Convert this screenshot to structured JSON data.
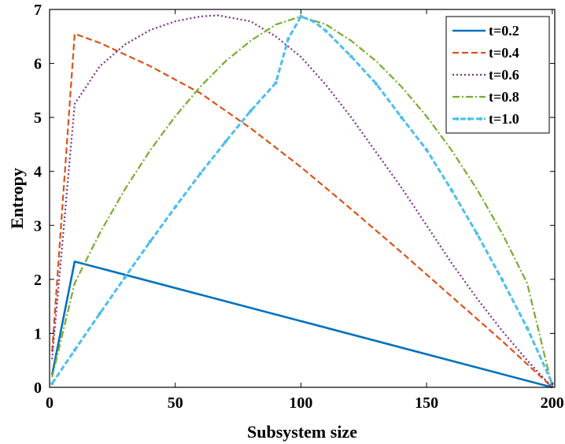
{
  "chart_data": {
    "type": "line",
    "xlabel": "Subsystem size",
    "ylabel": "Entropy",
    "xlim": [
      0,
      201
    ],
    "ylim": [
      0,
      7
    ],
    "xticks": [
      0,
      50,
      100,
      150,
      200
    ],
    "yticks": [
      0,
      1,
      2,
      3,
      4,
      5,
      6,
      7
    ],
    "grid": false,
    "legend_position": "top-right",
    "series": [
      {
        "name": "t=0.2",
        "color": "#0072BD",
        "style": "solid",
        "points": [
          [
            1,
            0.23
          ],
          [
            10,
            2.33
          ],
          [
            200,
            0
          ]
        ]
      },
      {
        "name": "t=0.4",
        "color": "#D95319",
        "style": "dashed",
        "points": [
          [
            1,
            0.66
          ],
          [
            10,
            6.55
          ],
          [
            20,
            6.38
          ],
          [
            40,
            5.95
          ],
          [
            60,
            5.45
          ],
          [
            80,
            4.8
          ],
          [
            100,
            4.08
          ],
          [
            120,
            3.3
          ],
          [
            140,
            2.5
          ],
          [
            160,
            1.68
          ],
          [
            180,
            0.86
          ],
          [
            200,
            0
          ]
        ]
      },
      {
        "name": "t=0.6",
        "color": "#7E2F8E",
        "style": "dotted",
        "points": [
          [
            1,
            0.52
          ],
          [
            10,
            5.25
          ],
          [
            20,
            5.95
          ],
          [
            30,
            6.35
          ],
          [
            40,
            6.62
          ],
          [
            50,
            6.78
          ],
          [
            60,
            6.87
          ],
          [
            67,
            6.89
          ],
          [
            80,
            6.78
          ],
          [
            90,
            6.5
          ],
          [
            100,
            6.12
          ],
          [
            110,
            5.6
          ],
          [
            120,
            5.0
          ],
          [
            130,
            4.35
          ],
          [
            140,
            3.7
          ],
          [
            150,
            3.0
          ],
          [
            160,
            2.3
          ],
          [
            170,
            1.65
          ],
          [
            180,
            1.05
          ],
          [
            190,
            0.5
          ],
          [
            200,
            0
          ]
        ]
      },
      {
        "name": "t=0.8",
        "color": "#77AC30",
        "style": "dashdot",
        "points": [
          [
            1,
            0.19
          ],
          [
            10,
            1.93
          ],
          [
            20,
            2.86
          ],
          [
            30,
            3.67
          ],
          [
            40,
            4.39
          ],
          [
            50,
            5.02
          ],
          [
            60,
            5.57
          ],
          [
            70,
            6.04
          ],
          [
            80,
            6.42
          ],
          [
            90,
            6.72
          ],
          [
            100,
            6.87
          ],
          [
            110,
            6.72
          ],
          [
            120,
            6.42
          ],
          [
            130,
            6.04
          ],
          [
            140,
            5.57
          ],
          [
            150,
            5.02
          ],
          [
            160,
            4.39
          ],
          [
            170,
            3.67
          ],
          [
            180,
            2.86
          ],
          [
            190,
            1.93
          ],
          [
            200,
            0
          ]
        ]
      },
      {
        "name": "t=1.0",
        "color": "#4DBEEE",
        "style": "dashed-marker",
        "points": [
          [
            1,
            0.07
          ],
          [
            10,
            0.69
          ],
          [
            20,
            1.37
          ],
          [
            30,
            2.04
          ],
          [
            40,
            2.7
          ],
          [
            50,
            3.34
          ],
          [
            60,
            3.96
          ],
          [
            70,
            4.55
          ],
          [
            80,
            5.12
          ],
          [
            90,
            5.64
          ],
          [
            95,
            6.46
          ],
          [
            100,
            6.87
          ],
          [
            105,
            6.78
          ],
          [
            110,
            6.6
          ],
          [
            120,
            6.13
          ],
          [
            130,
            5.62
          ],
          [
            140,
            5.0
          ],
          [
            150,
            4.4
          ],
          [
            160,
            3.65
          ],
          [
            170,
            2.85
          ],
          [
            180,
            2.0
          ],
          [
            190,
            1.1
          ],
          [
            200,
            0.07
          ]
        ]
      }
    ]
  }
}
